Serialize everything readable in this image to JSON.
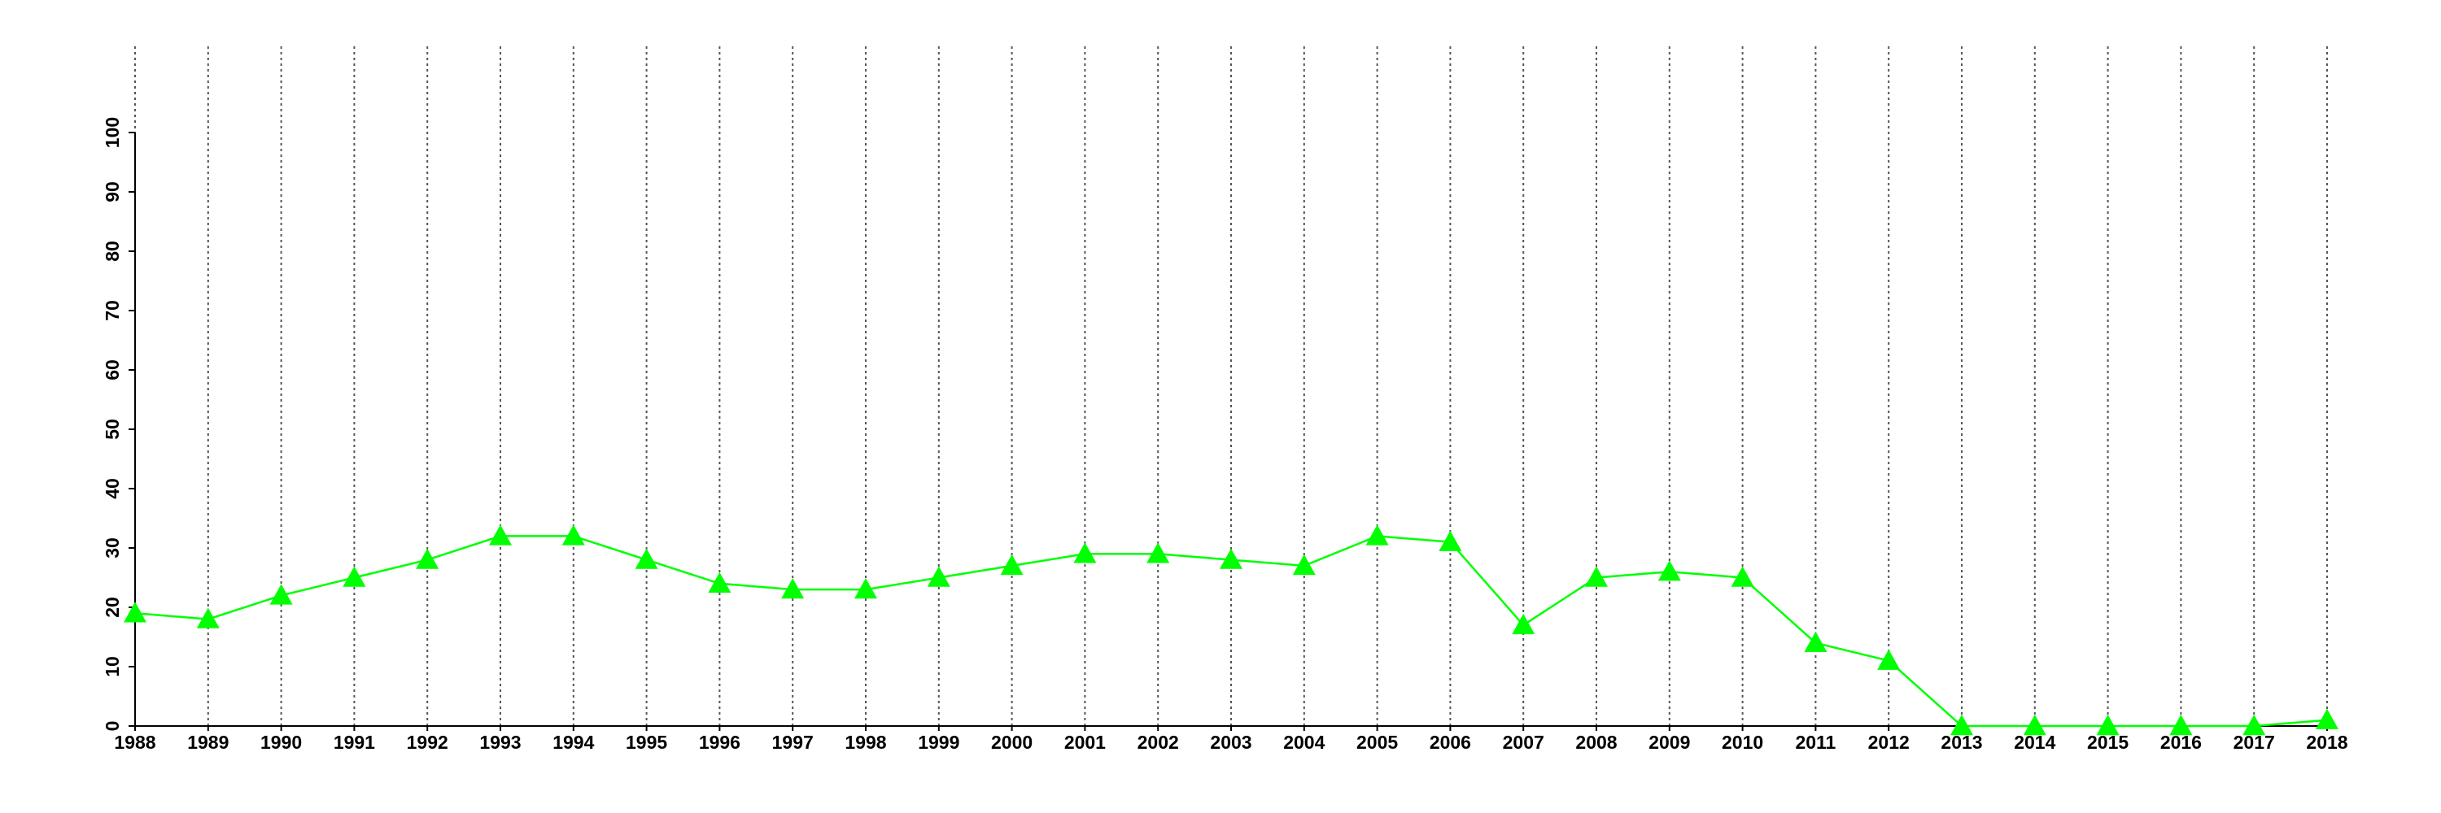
{
  "chart_data": {
    "type": "line",
    "x": [
      1988,
      1989,
      1990,
      1991,
      1992,
      1993,
      1994,
      1995,
      1996,
      1997,
      1998,
      1999,
      2000,
      2001,
      2002,
      2003,
      2004,
      2005,
      2006,
      2007,
      2008,
      2009,
      2010,
      2011,
      2012,
      2013,
      2014,
      2015,
      2016,
      2017,
      2018
    ],
    "series": [
      {
        "color": "#00ff00",
        "values": [
          19,
          18,
          22,
          25,
          28,
          32,
          32,
          28,
          24,
          23,
          23,
          25,
          27,
          29,
          29,
          28,
          27,
          32,
          31,
          17,
          25,
          26,
          25,
          14,
          11,
          0,
          0,
          0,
          0,
          0,
          1
        ]
      }
    ],
    "xlim": [
      1988,
      2018
    ],
    "xticks": [
      1988,
      1989,
      1990,
      1991,
      1992,
      1993,
      1994,
      1995,
      1996,
      1997,
      1998,
      1999,
      2000,
      2001,
      2002,
      2003,
      2004,
      2005,
      2006,
      2007,
      2008,
      2009,
      2010,
      2011,
      2012,
      2013,
      2014,
      2015,
      2016,
      2017,
      2018
    ],
    "ylim": [
      0,
      100
    ],
    "yticks": [
      0,
      10,
      20,
      30,
      40,
      50,
      60,
      70,
      80,
      90,
      100
    ],
    "grid": "x",
    "marker": "triangle"
  }
}
